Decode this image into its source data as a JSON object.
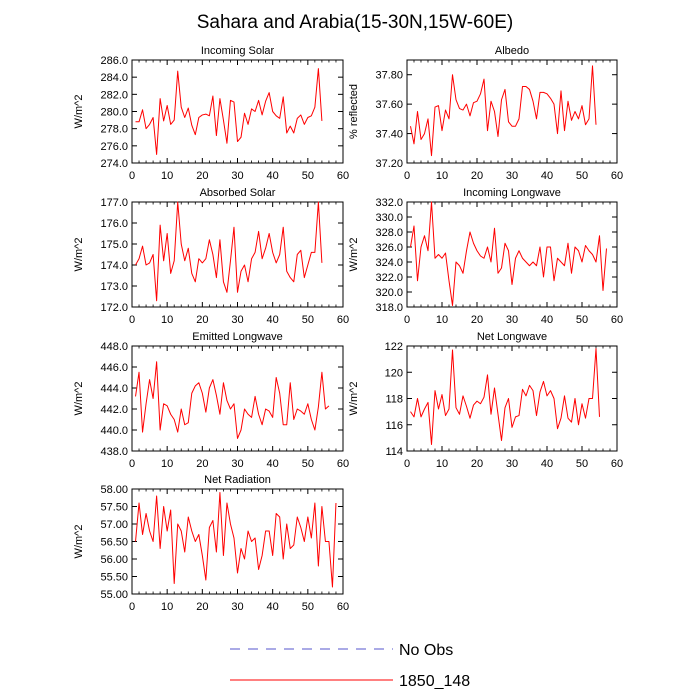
{
  "figure_title": "Sahara and Arabia(15-30N,15W-60E)",
  "legend": {
    "items": [
      {
        "label": "No Obs",
        "color": "#5555cc",
        "dash": true
      },
      {
        "label": "1850_148",
        "color": "#ff0000",
        "dash": false
      }
    ]
  },
  "chart_data": [
    {
      "type": "line",
      "title": "Incoming Solar",
      "ylabel": "W/m^2",
      "xlim": [
        0,
        60
      ],
      "ylim": [
        274,
        286
      ],
      "xticks": [
        0,
        10,
        20,
        30,
        40,
        50,
        60
      ],
      "yticks": [
        "274.0",
        "276.0",
        "278.0",
        "280.0",
        "282.0",
        "284.0",
        "286.0"
      ],
      "series": [
        {
          "color": "#ff0000",
          "values": [
            278.8,
            278.8,
            280.2,
            278.0,
            278.5,
            279.3,
            275.0,
            281.5,
            278.9,
            280.7,
            278.5,
            279.0,
            284.7,
            280.5,
            279.3,
            280.4,
            278.4,
            277.3,
            279.3,
            279.6,
            279.7,
            279.5,
            281.8,
            277.2,
            281.5,
            279.0,
            276.3,
            281.3,
            281.1,
            276.5,
            277.0,
            279.8,
            278.5,
            280.3,
            280.0,
            281.3,
            279.6,
            281.2,
            282.2,
            280.0,
            279.5,
            279.2,
            281.7,
            277.5,
            278.3,
            277.5,
            279.2,
            279.6,
            278.5,
            279.3,
            279.5,
            280.5,
            285.0,
            278.9
          ]
        }
      ]
    },
    {
      "type": "line",
      "title": "Albedo",
      "ylabel": "% reflected",
      "xlim": [
        0,
        60
      ],
      "ylim": [
        37.2,
        37.9
      ],
      "xticks": [
        0,
        10,
        20,
        30,
        40,
        50,
        60
      ],
      "yticks": [
        "37.20",
        "37.40",
        "37.60",
        "37.80"
      ],
      "series": [
        {
          "color": "#ff0000",
          "values": [
            37.45,
            37.33,
            37.55,
            37.36,
            37.4,
            37.5,
            37.25,
            37.58,
            37.59,
            37.42,
            37.56,
            37.5,
            37.8,
            37.63,
            37.57,
            37.56,
            37.6,
            37.52,
            37.61,
            37.62,
            37.67,
            37.77,
            37.42,
            37.62,
            37.55,
            37.38,
            37.63,
            37.7,
            37.48,
            37.45,
            37.45,
            37.5,
            37.72,
            37.72,
            37.7,
            37.62,
            37.5,
            37.68,
            37.68,
            37.67,
            37.64,
            37.6,
            37.4,
            37.69,
            37.42,
            37.62,
            37.49,
            37.55,
            37.5,
            37.59,
            37.46,
            37.5,
            37.86,
            37.46
          ]
        }
      ]
    },
    {
      "type": "line",
      "title": "Absorbed Solar",
      "ylabel": "W/m^2",
      "xlim": [
        0,
        60
      ],
      "ylim": [
        172,
        177
      ],
      "xticks": [
        0,
        10,
        20,
        30,
        40,
        50,
        60
      ],
      "yticks": [
        "172.0",
        "173.0",
        "174.0",
        "175.0",
        "176.0",
        "177.0"
      ],
      "series": [
        {
          "color": "#ff0000",
          "values": [
            174.0,
            174.3,
            174.9,
            174.0,
            174.1,
            174.5,
            172.3,
            175.9,
            174.2,
            175.5,
            173.6,
            174.2,
            177.0,
            175.0,
            174.2,
            174.8,
            173.6,
            173.2,
            174.3,
            174.1,
            174.3,
            175.2,
            174.5,
            173.4,
            175.2,
            173.2,
            172.7,
            174.2,
            175.8,
            172.7,
            173.7,
            174.0,
            173.2,
            174.3,
            174.6,
            175.6,
            174.3,
            174.8,
            175.5,
            174.6,
            174.1,
            174.5,
            175.8,
            173.7,
            173.4,
            173.2,
            174.5,
            174.7,
            173.4,
            174.0,
            174.6,
            174.6,
            177.0,
            174.1
          ]
        }
      ]
    },
    {
      "type": "line",
      "title": "Incoming Longwave",
      "ylabel": "W/m^2",
      "xlim": [
        0,
        60
      ],
      "ylim": [
        318,
        332
      ],
      "xticks": [
        0,
        10,
        20,
        30,
        40,
        50,
        60
      ],
      "yticks": [
        "318.0",
        "320.0",
        "322.0",
        "324.0",
        "326.0",
        "328.0",
        "330.0",
        "332.0"
      ],
      "series": [
        {
          "color": "#ff0000",
          "values": [
            326.0,
            328.8,
            321.5,
            326.0,
            327.5,
            325.5,
            332.0,
            324.5,
            325.0,
            324.5,
            325.2,
            321.5,
            318.2,
            324.0,
            323.5,
            322.5,
            325.5,
            328.0,
            326.5,
            325.5,
            324.8,
            324.5,
            326.0,
            324.0,
            328.5,
            322.5,
            323.2,
            326.5,
            325.5,
            321.0,
            324.5,
            325.5,
            324.5,
            324.0,
            323.5,
            324.0,
            323.5,
            326.0,
            322.0,
            326.0,
            326.0,
            321.5,
            324.5,
            324.0,
            323.5,
            326.5,
            322.5,
            326.0,
            325.5,
            324.0,
            326.2,
            325.5,
            325.0,
            324.0,
            327.5,
            320.2,
            325.8
          ]
        }
      ]
    },
    {
      "type": "line",
      "title": "Emitted Longwave",
      "ylabel": "W/m^2",
      "xlim": [
        0,
        60
      ],
      "ylim": [
        438,
        448
      ],
      "xticks": [
        0,
        10,
        20,
        30,
        40,
        50,
        60
      ],
      "yticks": [
        "438.0",
        "440.0",
        "442.0",
        "444.0",
        "446.0",
        "448.0"
      ],
      "series": [
        {
          "color": "#ff0000",
          "values": [
            443.2,
            445.5,
            439.8,
            442.5,
            444.8,
            443.0,
            446.5,
            440.0,
            442.5,
            442.3,
            441.5,
            441.0,
            439.8,
            442.0,
            440.5,
            440.7,
            443.5,
            444.2,
            444.5,
            443.5,
            441.7,
            444.0,
            444.8,
            443.3,
            441.5,
            444.5,
            442.8,
            442.0,
            442.5,
            439.2,
            440.0,
            442.0,
            441.5,
            441.2,
            443.2,
            441.5,
            440.5,
            442.0,
            441.8,
            441.2,
            445.0,
            443.5,
            440.5,
            440.5,
            444.5,
            441.0,
            442.0,
            441.8,
            441.5,
            442.5,
            441.0,
            440.0,
            442.2,
            445.5,
            442.0,
            442.3
          ]
        }
      ]
    },
    {
      "type": "line",
      "title": "Net Longwave",
      "ylabel": "W/m^2",
      "xlim": [
        0,
        60
      ],
      "ylim": [
        114,
        122
      ],
      "xticks": [
        0,
        10,
        20,
        30,
        40,
        50,
        60
      ],
      "yticks": [
        "114",
        "116",
        "118",
        "120",
        "122"
      ],
      "series": [
        {
          "color": "#ff0000",
          "values": [
            117.0,
            116.6,
            118.0,
            116.6,
            117.2,
            117.7,
            114.5,
            118.6,
            117.2,
            118.3,
            116.7,
            117.2,
            121.7,
            117.3,
            116.8,
            118.2,
            117.4,
            116.5,
            117.5,
            117.8,
            117.6,
            118.1,
            119.8,
            116.8,
            118.8,
            116.8,
            114.8,
            117.3,
            118.0,
            115.8,
            116.6,
            116.7,
            118.7,
            118.2,
            119.0,
            118.6,
            116.7,
            118.5,
            119.3,
            118.2,
            118.6,
            118.0,
            115.7,
            116.5,
            118.2,
            116.5,
            116.2,
            118.0,
            116.0,
            117.6,
            116.5,
            118.0,
            118.0,
            121.8,
            116.6
          ]
        }
      ]
    },
    {
      "type": "line",
      "title": "Net Radiation",
      "ylabel": "W/m^2",
      "xlim": [
        0,
        60
      ],
      "ylim": [
        55,
        58
      ],
      "xticks": [
        0,
        10,
        20,
        30,
        40,
        50,
        60
      ],
      "yticks": [
        "55.00",
        "55.50",
        "56.00",
        "56.50",
        "57.00",
        "57.50",
        "58.00"
      ],
      "series": [
        {
          "color": "#ff0000",
          "values": [
            56.5,
            57.6,
            56.7,
            57.3,
            56.8,
            56.5,
            57.8,
            56.3,
            57.5,
            56.8,
            57.4,
            55.3,
            57.0,
            56.8,
            56.2,
            57.2,
            56.8,
            56.5,
            56.7,
            56.1,
            55.4,
            56.9,
            57.1,
            56.2,
            57.9,
            56.1,
            57.6,
            57.0,
            56.6,
            55.6,
            56.3,
            56.0,
            56.8,
            56.5,
            56.6,
            55.7,
            56.1,
            56.8,
            56.8,
            56.1,
            57.3,
            57.2,
            56.0,
            57.0,
            56.3,
            56.4,
            57.2,
            56.9,
            56.5,
            57.2,
            56.6,
            57.6,
            55.8,
            57.5,
            56.5,
            56.5,
            55.2,
            57.6
          ]
        }
      ]
    }
  ]
}
